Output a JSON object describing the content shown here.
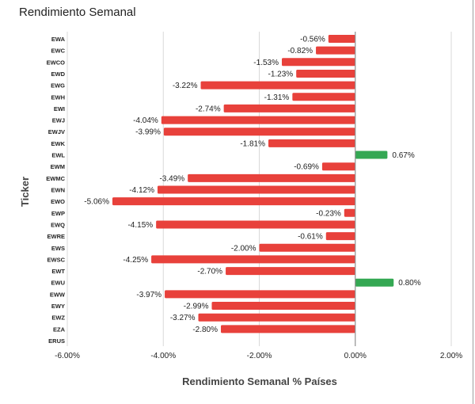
{
  "chart_data": {
    "type": "bar",
    "orientation": "horizontal",
    "title": "Rendimiento Semanal",
    "xlabel": "Rendimiento Semanal % Países",
    "ylabel": "Ticker",
    "xlim": [
      -6,
      2
    ],
    "x_ticks": [
      -6,
      -4,
      -2,
      0,
      2
    ],
    "x_tick_labels": [
      "-6.00%",
      "-4.00%",
      "-2.00%",
      "0.00%",
      "2.00%"
    ],
    "grid": true,
    "legend": "none",
    "categories": [
      "EWA",
      "EWC",
      "EWCO",
      "EWD",
      "EWG",
      "EWH",
      "EWI",
      "EWJ",
      "EWJV",
      "EWK",
      "EWL",
      "EWM",
      "EWMC",
      "EWN",
      "EWO",
      "EWP",
      "EWQ",
      "EWRE",
      "EWS",
      "EWSC",
      "EWT",
      "EWU",
      "EWW",
      "EWY",
      "EWZ",
      "EZA",
      "ERUS"
    ],
    "values": [
      -0.56,
      -0.82,
      -1.53,
      -1.23,
      -3.22,
      -1.31,
      -2.74,
      -4.04,
      -3.99,
      -1.81,
      0.67,
      -0.69,
      -3.49,
      -4.12,
      -5.06,
      -0.23,
      -4.15,
      -0.61,
      -2.0,
      -4.25,
      -2.7,
      0.8,
      -3.97,
      -2.99,
      -3.27,
      -2.8,
      null
    ],
    "data_labels": [
      "-0.56%",
      "-0.82%",
      "-1.53%",
      "-1.23%",
      "-3.22%",
      "-1.31%",
      "-2.74%",
      "-4.04%",
      "-3.99%",
      "-1.81%",
      "0.67%",
      "-0.69%",
      "-3.49%",
      "-4.12%",
      "-5.06%",
      "-0.23%",
      "-4.15%",
      "-0.61%",
      "-2.00%",
      "-4.25%",
      "-2.70%",
      "0.80%",
      "-3.97%",
      "-2.99%",
      "-3.27%",
      "-2.80%",
      ""
    ],
    "colors": {
      "negative": "#e8413b",
      "positive": "#34a853",
      "grid": "#d9d9d9",
      "zero_line": "#8f8f8f"
    }
  }
}
